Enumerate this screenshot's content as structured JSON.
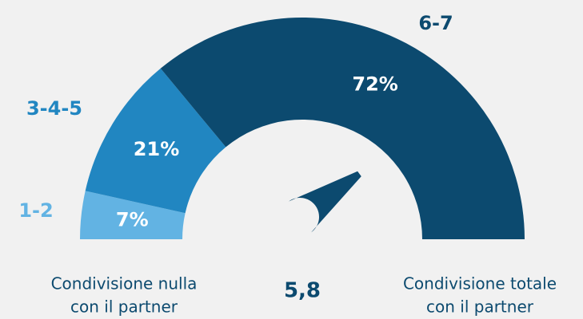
{
  "chart_data": {
    "type": "gauge",
    "categories": [
      "1-2",
      "3-4-5",
      "6-7"
    ],
    "values": [
      7,
      21,
      72
    ],
    "value_labels": [
      "7%",
      "21%",
      "72%"
    ],
    "colors": [
      "#62b3e3",
      "#2186c1",
      "#0c4a6f"
    ],
    "scale": [
      1,
      7
    ],
    "needle": {
      "value": 5.8,
      "label": "5,8"
    },
    "min_label": [
      "Condivisione nulla",
      "con il partner"
    ],
    "max_label": [
      "Condivisione totale",
      "con il partner"
    ]
  }
}
